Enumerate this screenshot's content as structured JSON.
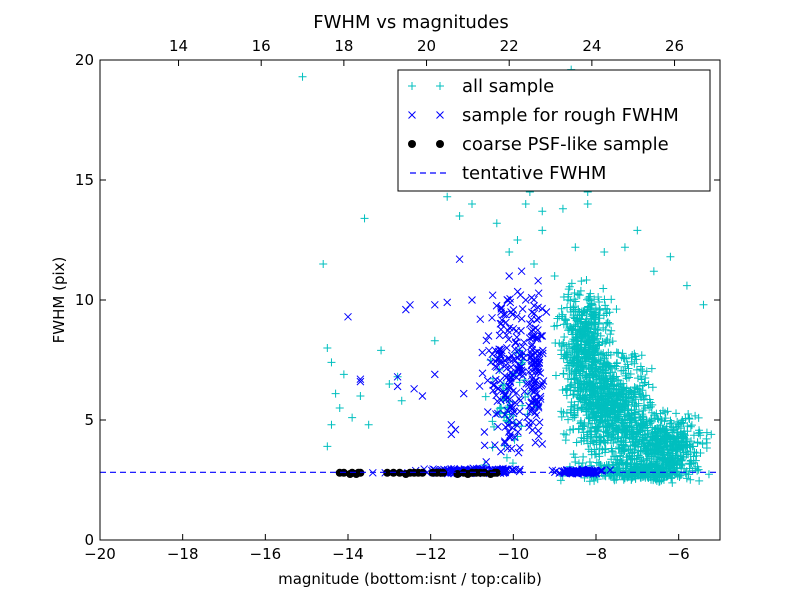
{
  "chart_data": {
    "type": "scatter",
    "title": "FWHM vs magnitudes",
    "xlabel": "magnitude (bottom:isnt / top:calib)",
    "ylabel": "FWHM (pix)",
    "xlim": [
      -20,
      -5
    ],
    "ylim": [
      0,
      20
    ],
    "x_ticks": [
      "−20",
      "−18",
      "−16",
      "−14",
      "−12",
      "−10",
      "−8",
      "−6"
    ],
    "y_ticks": [
      "0",
      "5",
      "10",
      "15",
      "20"
    ],
    "top_axis": {
      "offset_from_bottom": 32.1,
      "ticks": [
        "14",
        "16",
        "18",
        "20",
        "22",
        "24",
        "26"
      ]
    },
    "legend_position": "upper-right",
    "grid": false,
    "series": [
      {
        "name": "all sample",
        "marker": "+",
        "color": "#00bfbf",
        "points": [
          [
            -15.1,
            19.3
          ],
          [
            -14.6,
            11.5
          ],
          [
            -14.5,
            8.0
          ],
          [
            -14.4,
            7.4
          ],
          [
            -14.3,
            6.1
          ],
          [
            -14.1,
            6.9
          ],
          [
            -14.2,
            5.5
          ],
          [
            -14.4,
            4.8
          ],
          [
            -14.5,
            3.9
          ],
          [
            -13.9,
            5.1
          ],
          [
            -13.7,
            6.0
          ],
          [
            -13.6,
            13.4
          ],
          [
            -13.5,
            4.8
          ],
          [
            -13.2,
            7.9
          ],
          [
            -13.0,
            6.5
          ],
          [
            -12.8,
            6.8
          ],
          [
            -12.7,
            5.8
          ],
          [
            -11.9,
            8.3
          ],
          [
            -11.6,
            14.3
          ],
          [
            -11.3,
            13.5
          ],
          [
            -11.0,
            14.0
          ],
          [
            -10.8,
            14.8
          ],
          [
            -10.4,
            13.2
          ],
          [
            -10.1,
            12.0
          ],
          [
            -9.9,
            12.5
          ],
          [
            -9.7,
            14.0
          ],
          [
            -9.5,
            11.5
          ],
          [
            -9.3,
            12.9
          ],
          [
            -9.0,
            11.0
          ],
          [
            -8.8,
            13.8
          ],
          [
            -8.5,
            12.2
          ],
          [
            -8.2,
            14.5
          ],
          [
            -7.8,
            12.0
          ],
          [
            -7.3,
            12.2
          ],
          [
            -7.0,
            12.9
          ],
          [
            -6.6,
            11.2
          ],
          [
            -6.2,
            11.8
          ],
          [
            -5.8,
            10.6
          ],
          [
            -5.4,
            9.8
          ],
          [
            -7.9,
            16.0
          ],
          [
            -8.3,
            16.8
          ],
          [
            -7.6,
            15.5
          ],
          [
            -8.0,
            17.3
          ],
          [
            -7.5,
            17.8
          ],
          [
            -8.6,
            19.6
          ],
          [
            -7.2,
            18.7
          ],
          [
            -6.6,
            16.5
          ],
          [
            -7.1,
            16.1
          ],
          [
            -6.8,
            18.0
          ],
          [
            -8.8,
            16.5
          ],
          [
            -9.3,
            13.7
          ],
          [
            -9.6,
            14.5
          ],
          [
            -6.1,
            19.0
          ],
          [
            -8.5,
            15.4
          ],
          [
            -7.0,
            15.1
          ],
          [
            -8.2,
            14.0
          ]
        ],
        "clusters": [
          {
            "x": [
              -9.2,
              -7.3
            ],
            "y": [
              5.0,
              11.0
            ],
            "n": 520
          },
          {
            "x": [
              -9.0,
              -6.3
            ],
            "y": [
              3.0,
              8.0
            ],
            "n": 750
          },
          {
            "x": [
              -7.8,
              -5.0
            ],
            "y": [
              2.3,
              5.5
            ],
            "n": 520
          },
          {
            "x": [
              -9.2,
              -5.0
            ],
            "y": [
              2.4,
              3.3
            ],
            "n": 280
          },
          {
            "x": [
              -11.0,
              -9.2
            ],
            "y": [
              2.8,
              8.5
            ],
            "n": 60
          }
        ]
      },
      {
        "name": "sample for rough FWHM",
        "marker": "x",
        "color": "#0000ff",
        "points": [
          [
            -14.0,
            9.3
          ],
          [
            -13.7,
            6.7
          ],
          [
            -13.7,
            6.6
          ],
          [
            -13.4,
            2.8
          ],
          [
            -13.1,
            2.8
          ],
          [
            -12.8,
            6.8
          ],
          [
            -12.8,
            6.4
          ],
          [
            -12.6,
            9.6
          ],
          [
            -12.5,
            9.8
          ],
          [
            -12.7,
            2.8
          ],
          [
            -12.4,
            6.3
          ],
          [
            -12.2,
            6.0
          ],
          [
            -11.9,
            6.9
          ],
          [
            -11.9,
            9.8
          ],
          [
            -11.8,
            2.8
          ],
          [
            -11.6,
            9.9
          ],
          [
            -11.5,
            4.4
          ],
          [
            -11.5,
            4.8
          ],
          [
            -11.4,
            4.6
          ],
          [
            -11.3,
            11.7
          ],
          [
            -11.2,
            2.8
          ],
          [
            -11.2,
            6.1
          ],
          [
            -11.0,
            10.0
          ],
          [
            -10.9,
            2.8
          ],
          [
            -10.8,
            9.2
          ],
          [
            -10.7,
            4.5
          ],
          [
            -10.6,
            8.5
          ],
          [
            -10.5,
            10.2
          ],
          [
            -10.4,
            7.2
          ],
          [
            -10.4,
            2.9
          ],
          [
            -10.3,
            9.5
          ],
          [
            -10.2,
            6.0
          ],
          [
            -10.1,
            11.0
          ],
          [
            -10.0,
            8.8
          ],
          [
            -9.8,
            11.2
          ],
          [
            -9.7,
            10.0
          ],
          [
            -9.6,
            9.0
          ],
          [
            -9.5,
            7.5
          ],
          [
            -9.4,
            10.8
          ],
          [
            -9.3,
            8.5
          ],
          [
            -9.3,
            4.0
          ],
          [
            -9.2,
            9.5
          ]
        ],
        "clusters": [
          {
            "x": [
              -10.9,
              -9.3
            ],
            "y": [
              2.8,
              11.0
            ],
            "n": 170
          },
          {
            "x": [
              -9.7,
              -9.2
            ],
            "y": [
              4.0,
              10.7
            ],
            "n": 90
          },
          {
            "x": [
              -12.5,
              -9.3
            ],
            "y": [
              2.75,
              3.0
            ],
            "n": 160
          },
          {
            "x": [
              -9.2,
              -7.5
            ],
            "y": [
              2.75,
              2.95
            ],
            "n": 120
          }
        ]
      },
      {
        "name": "coarse PSF-like sample",
        "marker": "o",
        "color": "#000000",
        "points": [
          [
            -14.2,
            2.8
          ],
          [
            -14.1,
            2.8
          ],
          [
            -13.95,
            2.75
          ],
          [
            -13.9,
            2.8
          ],
          [
            -13.8,
            2.75
          ],
          [
            -13.75,
            2.8
          ],
          [
            -13.7,
            2.8
          ],
          [
            -13.05,
            2.8
          ],
          [
            -12.9,
            2.8
          ],
          [
            -12.75,
            2.8
          ],
          [
            -12.6,
            2.75
          ],
          [
            -12.5,
            2.8
          ],
          [
            -12.4,
            2.8
          ],
          [
            -12.3,
            2.8
          ],
          [
            -12.2,
            2.8
          ],
          [
            -11.95,
            2.8
          ],
          [
            -11.85,
            2.8
          ],
          [
            -11.75,
            2.8
          ],
          [
            -11.7,
            2.8
          ],
          [
            -11.35,
            2.75
          ],
          [
            -11.2,
            2.8
          ],
          [
            -11.1,
            2.75
          ],
          [
            -11.0,
            2.8
          ],
          [
            -10.9,
            2.8
          ],
          [
            -10.8,
            2.8
          ],
          [
            -10.7,
            2.8
          ],
          [
            -10.55,
            2.75
          ],
          [
            -10.45,
            2.8
          ],
          [
            -10.4,
            2.8
          ]
        ]
      },
      {
        "name": "tentative FWHM",
        "marker": "dashed-line",
        "color": "#0000ff",
        "y": 2.82
      }
    ]
  }
}
